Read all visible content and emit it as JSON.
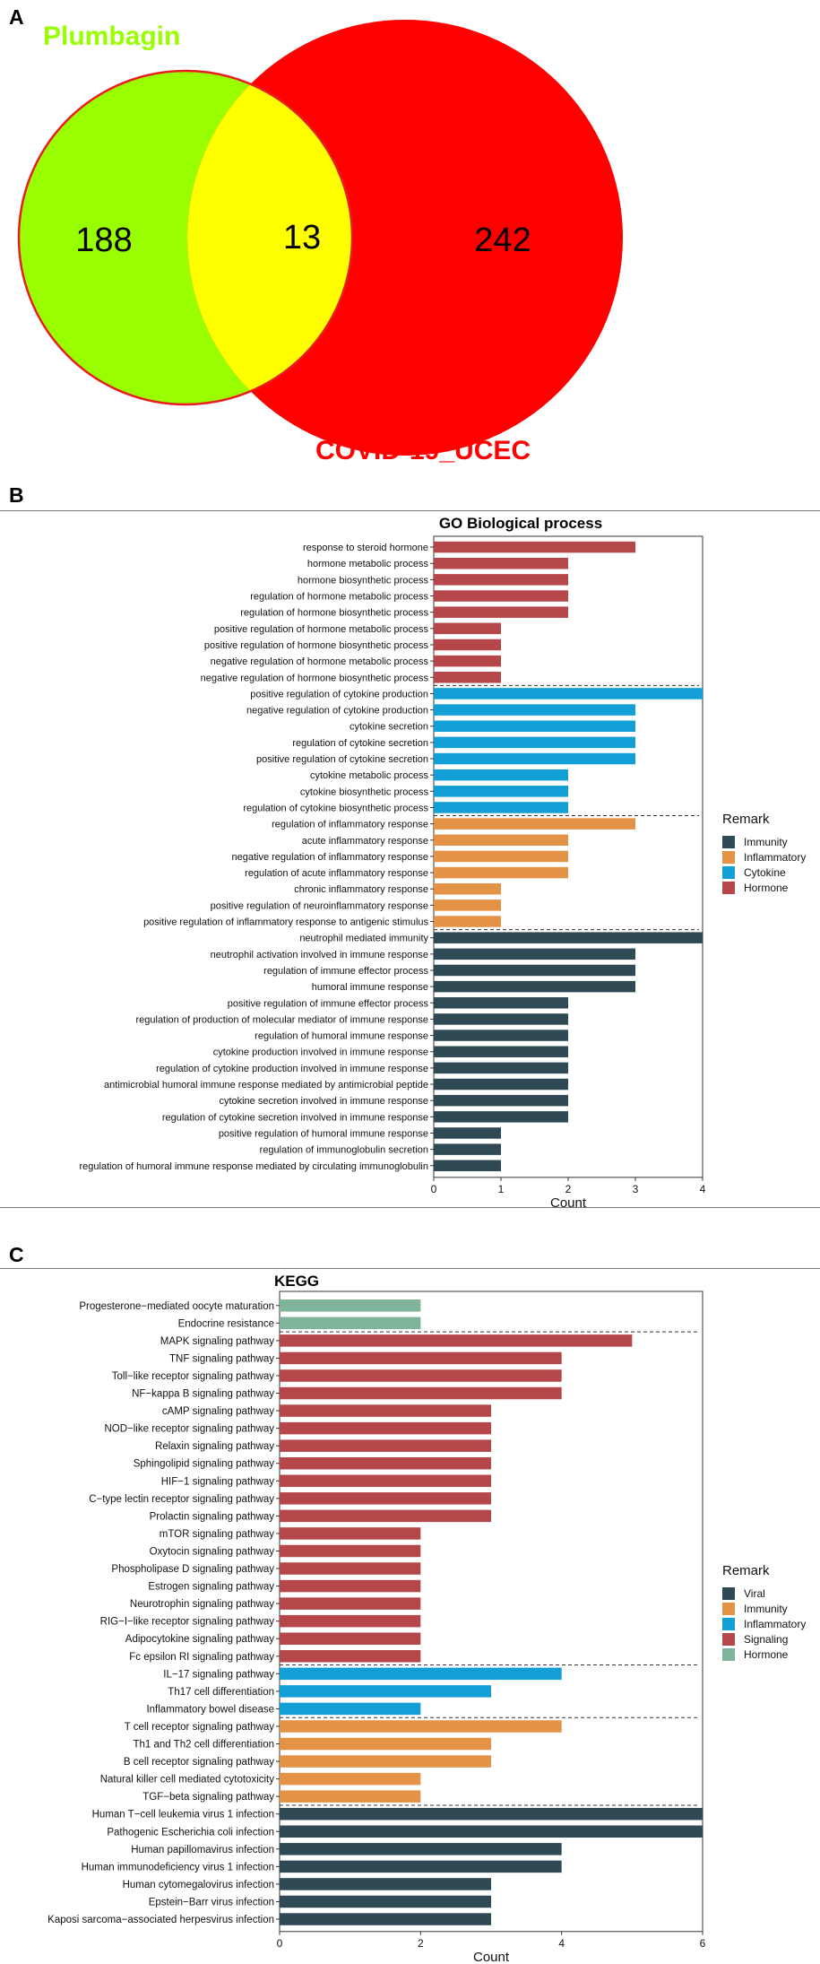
{
  "panels": {
    "a": {
      "label": "A"
    },
    "b": {
      "label": "B"
    },
    "c": {
      "label": "C"
    }
  },
  "colors": {
    "plumbagin": "#99ff00",
    "covid": "#ff0000",
    "overlap": "#ffff00",
    "Hormone": "#b5464a",
    "Cytokine": "#129fd6",
    "Inflammatory": "#e39246",
    "Immunity": "#2f4a55",
    "KEGG_Viral": "#2f4a55",
    "KEGG_Immunity": "#e39246",
    "KEGG_Inflammatory": "#129fd6",
    "KEGG_Signaling": "#b5464a",
    "KEGG_Hormone": "#7fb39a"
  },
  "chart_data": [
    {
      "type": "venn",
      "sets": [
        {
          "name": "Plumbagin",
          "only": 188
        },
        {
          "name": "COVID-19_UCEC",
          "only": 242
        }
      ],
      "intersection": 13
    },
    {
      "type": "bar",
      "orientation": "horizontal",
      "title": "GO Biological process",
      "xlabel": "Count",
      "xlim": [
        0,
        4
      ],
      "xticks": [
        0,
        1,
        2,
        3,
        4
      ],
      "legend_title": "Remark",
      "legend": [
        "Immunity",
        "Inflammatory",
        "Cytokine",
        "Hormone"
      ],
      "legend_position": "right",
      "categories": [
        "response to steroid hormone",
        "hormone metabolic process",
        "hormone biosynthetic process",
        "regulation of hormone metabolic process",
        "regulation of hormone biosynthetic process",
        "positive regulation of hormone metabolic process",
        "positive regulation of hormone biosynthetic process",
        "negative regulation of hormone metabolic process",
        "negative regulation of hormone biosynthetic process",
        "positive regulation of cytokine production",
        "negative regulation of cytokine production",
        "cytokine secretion",
        "regulation of cytokine secretion",
        "positive regulation of cytokine secretion",
        "cytokine metabolic process",
        "cytokine biosynthetic process",
        "regulation of cytokine biosynthetic process",
        "regulation of inflammatory response",
        "acute inflammatory response",
        "negative regulation of inflammatory response",
        "regulation of acute inflammatory response",
        "chronic inflammatory response",
        "positive regulation of neuroinflammatory response",
        "positive regulation of inflammatory response to antigenic stimulus",
        "neutrophil mediated immunity",
        "neutrophil activation involved in immune response",
        "regulation of immune effector process",
        "humoral immune response",
        "positive regulation of immune effector process",
        "regulation of production of molecular mediator of immune response",
        "regulation of humoral immune response",
        "cytokine production involved in immune response",
        "regulation of cytokine production involved in immune response",
        "antimicrobial humoral immune response mediated by antimicrobial peptide",
        "cytokine secretion involved in immune response",
        "regulation of cytokine secretion involved in immune response",
        "positive regulation of humoral immune response",
        "regulation of immunoglobulin secretion",
        "regulation of humoral immune response mediated by circulating immunoglobulin"
      ],
      "values": [
        3,
        2,
        2,
        2,
        2,
        1,
        1,
        1,
        1,
        4,
        3,
        3,
        3,
        3,
        2,
        2,
        2,
        3,
        2,
        2,
        2,
        1,
        1,
        1,
        4,
        3,
        3,
        3,
        2,
        2,
        2,
        2,
        2,
        2,
        2,
        2,
        1,
        1,
        1
      ],
      "groups": [
        "Hormone",
        "Hormone",
        "Hormone",
        "Hormone",
        "Hormone",
        "Hormone",
        "Hormone",
        "Hormone",
        "Hormone",
        "Cytokine",
        "Cytokine",
        "Cytokine",
        "Cytokine",
        "Cytokine",
        "Cytokine",
        "Cytokine",
        "Cytokine",
        "Inflammatory",
        "Inflammatory",
        "Inflammatory",
        "Inflammatory",
        "Inflammatory",
        "Inflammatory",
        "Inflammatory",
        "Immunity",
        "Immunity",
        "Immunity",
        "Immunity",
        "Immunity",
        "Immunity",
        "Immunity",
        "Immunity",
        "Immunity",
        "Immunity",
        "Immunity",
        "Immunity",
        "Immunity",
        "Immunity",
        "Immunity"
      ]
    },
    {
      "type": "bar",
      "orientation": "horizontal",
      "title": "KEGG",
      "xlabel": "Count",
      "xlim": [
        0,
        6
      ],
      "xticks": [
        0,
        2,
        4,
        6
      ],
      "legend_title": "Remark",
      "legend": [
        "Viral",
        "Immunity",
        "Inflammatory",
        "Signaling",
        "Hormone"
      ],
      "legend_position": "right",
      "categories": [
        "Progesterone−mediated oocyte maturation",
        "Endocrine resistance",
        "MAPK signaling pathway",
        "TNF signaling pathway",
        "Toll−like receptor signaling pathway",
        "NF−kappa B signaling pathway",
        "cAMP signaling pathway",
        "NOD−like receptor signaling pathway",
        "Relaxin signaling pathway",
        "Sphingolipid signaling pathway",
        "HIF−1 signaling pathway",
        "C−type lectin receptor signaling pathway",
        "Prolactin signaling pathway",
        "mTOR signaling pathway",
        "Oxytocin signaling pathway",
        "Phospholipase D signaling pathway",
        "Estrogen signaling pathway",
        "Neurotrophin signaling pathway",
        "RIG−I−like receptor signaling pathway",
        "Adipocytokine signaling pathway",
        "Fc epsilon RI signaling pathway",
        "IL−17 signaling pathway",
        "Th17 cell differentiation",
        "Inflammatory bowel disease",
        "T cell receptor signaling pathway",
        "Th1 and Th2 cell differentiation",
        "B cell receptor signaling pathway",
        "Natural killer cell mediated cytotoxicity",
        "TGF−beta signaling pathway",
        "Human T−cell leukemia virus 1 infection",
        "Pathogenic Escherichia coli infection",
        "Human papillomavirus infection",
        "Human immunodeficiency virus 1 infection",
        "Human cytomegalovirus infection",
        "Epstein−Barr virus infection",
        "Kaposi sarcoma−associated herpesvirus infection"
      ],
      "values": [
        2,
        2,
        5,
        4,
        4,
        4,
        3,
        3,
        3,
        3,
        3,
        3,
        3,
        2,
        2,
        2,
        2,
        2,
        2,
        2,
        2,
        4,
        3,
        2,
        4,
        3,
        3,
        2,
        2,
        6,
        6,
        4,
        4,
        3,
        3,
        3
      ],
      "groups": [
        "Hormone",
        "Hormone",
        "Signaling",
        "Signaling",
        "Signaling",
        "Signaling",
        "Signaling",
        "Signaling",
        "Signaling",
        "Signaling",
        "Signaling",
        "Signaling",
        "Signaling",
        "Signaling",
        "Signaling",
        "Signaling",
        "Signaling",
        "Signaling",
        "Signaling",
        "Signaling",
        "Signaling",
        "Inflammatory",
        "Inflammatory",
        "Inflammatory",
        "Immunity",
        "Immunity",
        "Immunity",
        "Immunity",
        "Immunity",
        "Viral",
        "Viral",
        "Viral",
        "Viral",
        "Viral",
        "Viral",
        "Viral"
      ]
    }
  ]
}
